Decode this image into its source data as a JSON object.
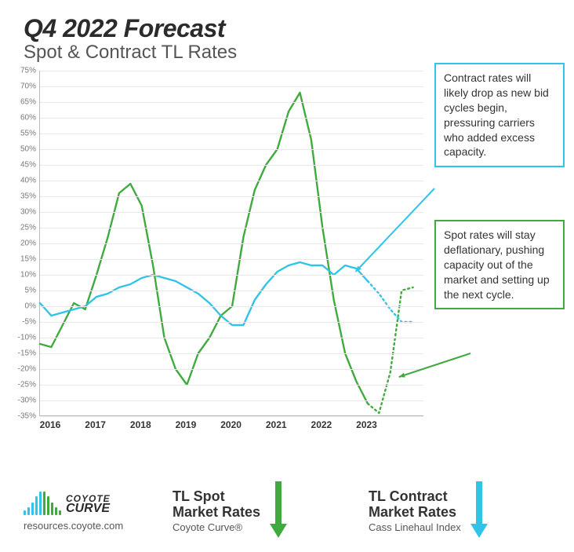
{
  "header": {
    "title": "Q4 2022 Forecast",
    "subtitle": "Spot & Contract TL Rates"
  },
  "chart": {
    "type": "line",
    "ylim": [
      -35,
      75
    ],
    "ytick_step": 5,
    "x_years": [
      "2016",
      "2017",
      "2018",
      "2019",
      "2020",
      "2021",
      "2022",
      "2023"
    ],
    "quarters_per_year": 4,
    "series": {
      "spot": {
        "label": "TL Spot Market Rates",
        "color": "#3fab3f",
        "line_width": 2.4,
        "solid": [
          -12,
          -13,
          -6,
          1,
          -1,
          10,
          22,
          36,
          39,
          32,
          13,
          -10,
          -20,
          -25,
          -15,
          -10,
          -3,
          0,
          22,
          37,
          45,
          50,
          62,
          68,
          53,
          25,
          2,
          -15,
          -24,
          -31
        ],
        "forecast": [
          -31,
          -34,
          -21,
          5,
          6
        ]
      },
      "contract": {
        "label": "TL Contract Market Rates",
        "color": "#2fc4e8",
        "line_width": 2.4,
        "solid": [
          1,
          -3,
          -2,
          -1,
          0,
          3,
          4,
          6,
          7,
          9,
          10,
          9,
          8,
          6,
          4,
          1,
          -3,
          -6,
          -6,
          2,
          7,
          11,
          13,
          14,
          13,
          13,
          10,
          13,
          12,
          8
        ],
        "forecast": [
          8,
          4,
          -1,
          -5,
          -5
        ]
      }
    },
    "background_color": "#ffffff",
    "grid_color": "#e8e8e8",
    "axis_color": "#bbbbbb",
    "y_label_fontsize": 10,
    "x_label_fontsize": 12
  },
  "callouts": {
    "contract": {
      "text": "Contract rates will likely drop as new bid cycles begin, pressuring carriers who added excess capacity.",
      "border_color": "#2fc4e8"
    },
    "spot": {
      "text": "Spot rates will stay deflationary, pushing capacity out of the market and setting up the next cycle.",
      "border_color": "#3fab3f"
    }
  },
  "legend": {
    "brand_line1": "COYOTE",
    "brand_line2": "CURVE",
    "url": "resources.coyote.com",
    "spot": {
      "title1": "TL Spot",
      "title2": "Market Rates",
      "sub": "Coyote Curve®",
      "arrow_color": "#3fab3f"
    },
    "contract": {
      "title1": "TL Contract",
      "title2": "Market Rates",
      "sub": "Cass Linehaul Index",
      "arrow_color": "#2fc4e8"
    },
    "brand_bar_colors": [
      "#2fc4e8",
      "#2fc4e8",
      "#2fc4e8",
      "#2fc4e8",
      "#2fc4e8",
      "#3fab3f",
      "#3fab3f",
      "#3fab3f",
      "#3fab3f",
      "#3fab3f"
    ],
    "brand_bar_heights": [
      6,
      10,
      16,
      24,
      30,
      30,
      24,
      16,
      10,
      6
    ]
  }
}
